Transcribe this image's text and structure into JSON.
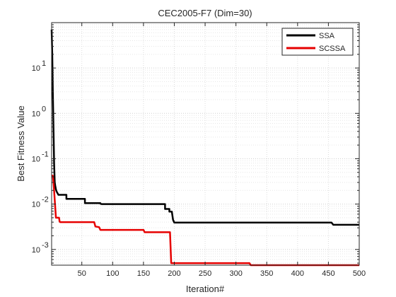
{
  "chart_data": {
    "type": "line",
    "title": "CEC2005-F7 (Dim=30)",
    "xlabel": "Iteration#",
    "ylabel": "Best Fitness Value",
    "xlim": [
      1,
      500
    ],
    "ylim": [
      0.00045,
      100
    ],
    "yscale": "log",
    "grid": true,
    "minor_grid": true,
    "legend_position": "top-right",
    "x_ticks": [
      50,
      100,
      150,
      200,
      250,
      300,
      350,
      400,
      450,
      500
    ],
    "y_ticks": [
      {
        "value": 0.001,
        "base": "10",
        "exp": "-3"
      },
      {
        "value": 0.01,
        "base": "10",
        "exp": "-2"
      },
      {
        "value": 0.1,
        "base": "10",
        "exp": "-1"
      },
      {
        "value": 1,
        "base": "10",
        "exp": "0"
      },
      {
        "value": 10,
        "base": "10",
        "exp": "1"
      }
    ],
    "series": [
      {
        "name": "SSA",
        "color": "#000000",
        "points": [
          [
            1,
            70
          ],
          [
            2,
            20
          ],
          [
            3,
            3
          ],
          [
            4,
            0.5
          ],
          [
            5,
            0.08
          ],
          [
            6,
            0.03
          ],
          [
            7,
            0.025
          ],
          [
            8,
            0.021
          ],
          [
            9,
            0.019
          ],
          [
            10,
            0.018
          ],
          [
            12,
            0.016
          ],
          [
            25,
            0.016
          ],
          [
            25,
            0.013
          ],
          [
            55,
            0.013
          ],
          [
            55,
            0.0105
          ],
          [
            80,
            0.0105
          ],
          [
            80,
            0.0102
          ],
          [
            82,
            0.01
          ],
          [
            185,
            0.01
          ],
          [
            185,
            0.0078
          ],
          [
            192,
            0.0078
          ],
          [
            192,
            0.0068
          ],
          [
            196,
            0.0068
          ],
          [
            198,
            0.0045
          ],
          [
            200,
            0.0039
          ],
          [
            455,
            0.0039
          ],
          [
            458,
            0.0035
          ],
          [
            500,
            0.0035
          ]
        ]
      },
      {
        "name": "SCSSA",
        "color": "#e60000",
        "points": [
          [
            1,
            0.043
          ],
          [
            3,
            0.042
          ],
          [
            4,
            0.03
          ],
          [
            5,
            0.02
          ],
          [
            7,
            0.008
          ],
          [
            8,
            0.005
          ],
          [
            13,
            0.005
          ],
          [
            14,
            0.0041
          ],
          [
            15,
            0.004
          ],
          [
            70,
            0.004
          ],
          [
            72,
            0.0032
          ],
          [
            78,
            0.0031
          ],
          [
            80,
            0.0027
          ],
          [
            150,
            0.0027
          ],
          [
            152,
            0.0024
          ],
          [
            193,
            0.0024
          ],
          [
            195,
            0.0005
          ],
          [
            322,
            0.0005
          ],
          [
            324,
            0.00045
          ],
          [
            500,
            0.00045
          ]
        ]
      }
    ]
  }
}
